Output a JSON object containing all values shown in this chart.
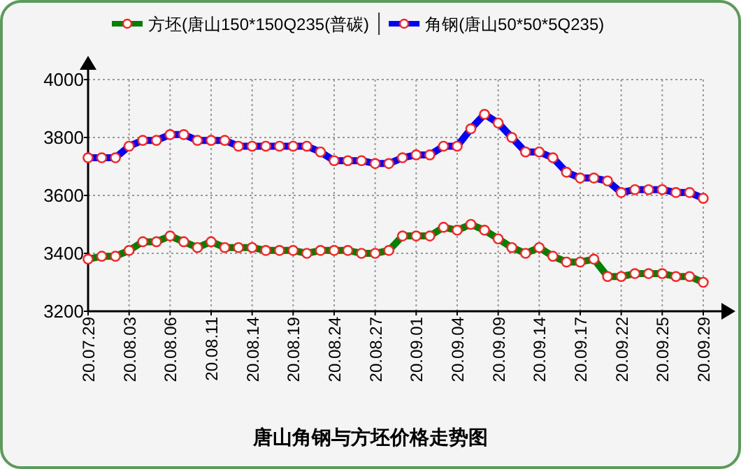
{
  "chart_data": {
    "type": "line",
    "title": "唐山角钢与方坯价格走势图",
    "categories": [
      "20.07.29",
      null,
      null,
      "20.08.03",
      null,
      null,
      "20.08.06",
      null,
      null,
      "20.08.11",
      null,
      null,
      "20.08.14",
      null,
      null,
      "20.08.19",
      null,
      null,
      "20.08.24",
      null,
      null,
      "20.08.27",
      null,
      null,
      "20.09.01",
      null,
      null,
      "20.09.04",
      null,
      null,
      "20.09.09",
      null,
      null,
      "20.09.14",
      null,
      null,
      "20.09.17",
      null,
      null,
      "20.09.22",
      null,
      null,
      "20.09.25",
      null,
      null,
      "20.09.29"
    ],
    "series": [
      {
        "name": "方坯(唐山150*150Q235(普碳)",
        "color": "#008000",
        "values": [
          3380,
          3390,
          3390,
          3410,
          3440,
          3440,
          3460,
          3440,
          3420,
          3440,
          3420,
          3420,
          3420,
          3410,
          3410,
          3410,
          3400,
          3410,
          3410,
          3410,
          3400,
          3400,
          3410,
          3460,
          3460,
          3460,
          3490,
          3480,
          3500,
          3480,
          3450,
          3420,
          3400,
          3420,
          3390,
          3370,
          3370,
          3380,
          3320,
          3320,
          3330,
          3330,
          3330,
          3320,
          3320,
          3300
        ]
      },
      {
        "name": "角钢(唐山50*50*5Q235)",
        "color": "#0000ff",
        "values": [
          3730,
          3730,
          3730,
          3770,
          3790,
          3790,
          3810,
          3810,
          3790,
          3790,
          3790,
          3770,
          3770,
          3770,
          3770,
          3770,
          3770,
          3750,
          3720,
          3720,
          3720,
          3710,
          3710,
          3730,
          3740,
          3740,
          3770,
          3770,
          3830,
          3880,
          3850,
          3800,
          3750,
          3750,
          3730,
          3680,
          3660,
          3660,
          3650,
          3610,
          3620,
          3620,
          3620,
          3610,
          3610,
          3590
        ]
      }
    ],
    "ylim": [
      3200,
      4000
    ],
    "yticks": [
      3200,
      3400,
      3600,
      3800,
      4000
    ],
    "grid": true,
    "legend": "top",
    "marker": "circle",
    "line_style": "solid"
  }
}
